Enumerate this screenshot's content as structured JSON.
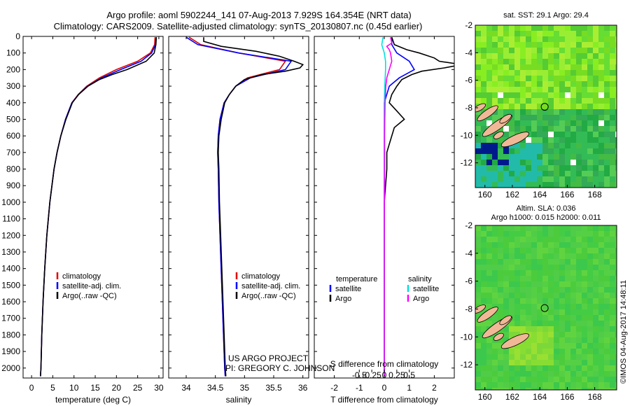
{
  "header": {
    "title_line1": "Argo profile: aoml 5902244_141 07-Aug-2013 7.929S 164.354E (NRT data)",
    "title_line2": "Climatology: CARS2009. Satellite-adjusted climatology: synTS_20130807.nc (0.45d earlier)"
  },
  "colors": {
    "climatology": "#e00000",
    "satellite": "#0000ff",
    "argo": "#000000",
    "sal_satellite": "#00e0e0",
    "sal_argo": "#ff00ff"
  },
  "chart_data": [
    {
      "type": "line",
      "name": "temperature-profile",
      "xlabel": "temperature (deg C)",
      "ylabel": "",
      "xlim": [
        -2,
        31
      ],
      "ylim": [
        2060,
        0
      ],
      "xticks": [
        0,
        5,
        10,
        15,
        20,
        25,
        30
      ],
      "yticks": [
        0,
        100,
        200,
        300,
        400,
        500,
        600,
        700,
        800,
        900,
        1000,
        1100,
        1200,
        1300,
        1400,
        1500,
        1600,
        1700,
        1800,
        1900,
        2000
      ],
      "legend": {
        "position": "lower-middle",
        "entries": [
          "climatology",
          "satellite-adj. clim.",
          "Argo(..raw -QC)"
        ]
      },
      "series": [
        {
          "name": "climatology",
          "color": "#e00000",
          "depth": [
            5,
            50,
            100,
            150,
            200,
            250,
            300,
            350,
            400,
            500,
            600,
            700,
            800,
            900,
            1000,
            1200,
            1400,
            1600,
            1800,
            2000,
            2050
          ],
          "values": [
            29.1,
            29.0,
            28.0,
            25.0,
            20.0,
            16.0,
            13.0,
            11.0,
            9.5,
            8.0,
            6.9,
            6.0,
            5.3,
            4.8,
            4.3,
            3.6,
            3.1,
            2.7,
            2.4,
            2.2,
            2.1
          ]
        },
        {
          "name": "satellite-adj. clim.",
          "color": "#0000ff",
          "depth": [
            5,
            50,
            100,
            150,
            200,
            250,
            300,
            350,
            400,
            500,
            600,
            700,
            800,
            900,
            1000,
            1200,
            1400,
            1600,
            1800,
            2000,
            2050
          ],
          "values": [
            29.4,
            29.2,
            28.3,
            25.8,
            21.0,
            16.5,
            13.2,
            11.1,
            9.5,
            8.0,
            6.9,
            6.0,
            5.3,
            4.8,
            4.3,
            3.6,
            3.1,
            2.7,
            2.4,
            2.2,
            2.1
          ]
        },
        {
          "name": "Argo(..raw -QC)",
          "color": "#000000",
          "depth": [
            5,
            50,
            100,
            150,
            200,
            230,
            260,
            300,
            350,
            400,
            500,
            600,
            700,
            800,
            900,
            1000,
            1200,
            1400,
            1600,
            1800,
            2000,
            2050
          ],
          "values": [
            29.4,
            29.3,
            28.9,
            27.0,
            22.5,
            19.0,
            16.0,
            13.3,
            11.1,
            9.6,
            8.1,
            6.9,
            6.0,
            5.3,
            4.8,
            4.3,
            3.6,
            3.1,
            2.7,
            2.4,
            2.2,
            2.1
          ]
        }
      ]
    },
    {
      "type": "line",
      "name": "salinity-profile",
      "xlabel": "salinity",
      "xlim": [
        33.7,
        36.1
      ],
      "ylim": [
        2060,
        0
      ],
      "xticks": [
        34,
        34.5,
        35,
        35.5,
        36
      ],
      "legend": {
        "position": "lower-middle",
        "entries": [
          "climatology",
          "satellite-adj. clim.",
          "Argo(..raw -QC)"
        ]
      },
      "annotation": {
        "line1": "US ARGO PROJECT",
        "line2": "PI: GREGORY C. JOHNSON"
      },
      "series": [
        {
          "name": "climatology",
          "color": "#e00000",
          "depth": [
            5,
            50,
            100,
            150,
            200,
            250,
            300,
            350,
            400,
            500,
            600,
            700,
            800,
            1000,
            1200,
            1500,
            1800,
            2000,
            2050
          ],
          "values": [
            34.05,
            34.25,
            34.9,
            35.7,
            35.6,
            35.05,
            34.85,
            34.74,
            34.65,
            34.58,
            34.55,
            34.54,
            34.55,
            34.56,
            34.58,
            34.61,
            34.64,
            34.66,
            34.67
          ]
        },
        {
          "name": "satellite-adj. clim.",
          "color": "#0000ff",
          "depth": [
            5,
            50,
            100,
            150,
            200,
            250,
            300,
            350,
            400,
            500,
            600,
            700,
            800,
            1000,
            1200,
            1500,
            1800,
            2000,
            2050
          ],
          "values": [
            34.0,
            34.2,
            34.9,
            35.8,
            35.7,
            35.1,
            34.85,
            34.74,
            34.65,
            34.58,
            34.55,
            34.54,
            34.55,
            34.56,
            34.58,
            34.61,
            34.64,
            34.66,
            34.67
          ]
        },
        {
          "name": "Argo(..raw -QC)",
          "color": "#000000",
          "depth": [
            5,
            30,
            60,
            90,
            120,
            150,
            170,
            190,
            210,
            230,
            260,
            300,
            350,
            400,
            500,
            600,
            700,
            800,
            1000,
            1200,
            1500,
            1800,
            2000,
            2050
          ],
          "values": [
            34.3,
            34.3,
            34.6,
            35.2,
            35.6,
            35.85,
            36.0,
            35.95,
            35.7,
            35.3,
            35.0,
            34.85,
            34.74,
            34.66,
            34.6,
            34.56,
            34.55,
            34.56,
            34.57,
            34.59,
            34.62,
            34.65,
            34.67,
            34.68
          ]
        }
      ]
    },
    {
      "type": "line",
      "name": "difference-profile",
      "xlabel": "T difference from climatology",
      "xlabel_top": "S difference from climatology",
      "xlim": [
        -2.8,
        2.8
      ],
      "ylim": [
        2060,
        0
      ],
      "xticks": [
        -2,
        -1,
        0,
        1,
        2
      ],
      "xticks_sal": [
        -0.5,
        -0.25,
        0,
        0.25,
        0.5
      ],
      "legend": {
        "position": "lower-middle",
        "titles": [
          "temperature",
          "salinity"
        ],
        "entries": [
          "satellite",
          "Argo",
          "satellite",
          "Argo"
        ]
      },
      "series": [
        {
          "name": "T satellite",
          "color": "#0000ff",
          "depth": [
            5,
            50,
            100,
            150,
            200,
            250,
            300,
            400,
            500,
            800,
            1200,
            2050
          ],
          "values": [
            0.3,
            0.3,
            0.5,
            1.0,
            1.2,
            0.6,
            0.2,
            0.0,
            0.0,
            0.0,
            0.0,
            0.0
          ]
        },
        {
          "name": "T Argo",
          "color": "#000000",
          "depth": [
            5,
            50,
            80,
            100,
            130,
            150,
            170,
            190,
            210,
            230,
            260,
            300,
            350,
            400,
            450,
            500,
            550,
            600,
            650,
            700,
            800,
            900,
            1000,
            1200,
            1500,
            1800,
            2050
          ],
          "values": [
            0.3,
            0.4,
            0.9,
            1.4,
            2.0,
            2.2,
            3.1,
            2.4,
            1.5,
            1.1,
            0.7,
            0.5,
            0.3,
            0.2,
            0.5,
            0.8,
            0.4,
            0.3,
            0.2,
            0.1,
            0.1,
            0.05,
            0.0,
            0.0,
            0.0,
            0.0,
            0.0
          ]
        },
        {
          "name": "S satellite",
          "color": "#00e0e0",
          "depth": [
            5,
            50,
            100,
            150,
            200,
            300,
            400,
            500,
            800,
            1200,
            2050
          ],
          "values": [
            -0.05,
            -0.1,
            0.0,
            0.05,
            0.05,
            0.02,
            0.0,
            0.0,
            0.0,
            0.0,
            0.0
          ]
        },
        {
          "name": "S Argo",
          "color": "#ff00ff",
          "depth": [
            5,
            40,
            60,
            80,
            100,
            150,
            200,
            250,
            300,
            400,
            500,
            600,
            800,
            1200,
            1600,
            2050
          ],
          "values": [
            0.25,
            0.3,
            0.1,
            0.2,
            0.25,
            0.3,
            0.2,
            0.1,
            0.06,
            0.03,
            0.02,
            0.01,
            0.01,
            0.0,
            0.0,
            0.0
          ]
        }
      ]
    },
    {
      "type": "heatmap",
      "name": "sst-map",
      "title": "sat. SST: 29.1  Argo: 29.4",
      "xlim": [
        159.3,
        169.6
      ],
      "ylim": [
        -13.8,
        -2
      ],
      "xticks": [
        160,
        162,
        164,
        166,
        168
      ],
      "yticks": [
        -2,
        -4,
        -6,
        -8,
        -10,
        -12
      ],
      "marker": {
        "lon": 164.354,
        "lat": -7.929
      }
    },
    {
      "type": "heatmap",
      "name": "sla-map",
      "title_line1": "Altim. SLA: 0.036",
      "title_line2": "Argo h1000: 0.015 h2000: 0.011",
      "xlim": [
        159.3,
        169.6
      ],
      "ylim": [
        -13.8,
        -2
      ],
      "xticks": [
        160,
        162,
        164,
        166,
        168
      ],
      "yticks": [
        -2,
        -4,
        -6,
        -8,
        -10,
        -12
      ],
      "marker": {
        "lon": 164.354,
        "lat": -7.929
      }
    }
  ],
  "footer": {
    "watermark": "©IMOS 04-Aug-2017 14:48:11"
  }
}
